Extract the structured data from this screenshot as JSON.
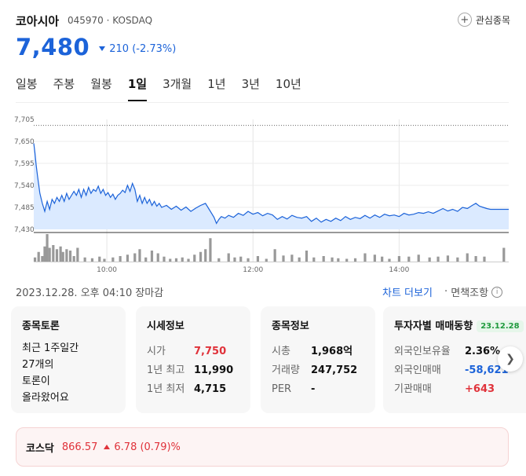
{
  "header": {
    "name": "코아시아",
    "code": "045970",
    "market": "KOSDAQ",
    "watch_label": "관심종목"
  },
  "quote": {
    "price": "7,480",
    "change": "210",
    "change_pct": "(-2.73%)",
    "direction": "down",
    "color": "#1c63d9"
  },
  "tabs": [
    "일봉",
    "주봉",
    "월봉",
    "1일",
    "3개월",
    "1년",
    "3년",
    "10년"
  ],
  "active_tab": "1일",
  "chart_data": {
    "type": "area",
    "y_ticks": [
      "7,705",
      "7,650",
      "7,595",
      "7,540",
      "7,485",
      "7,430"
    ],
    "ylim": [
      7430,
      7705
    ],
    "reference_line": 7690,
    "x_ticks": [
      "10:00",
      "12:00",
      "14:00"
    ],
    "x_range_minutes": [
      540,
      930
    ],
    "x_tick_minutes": [
      600,
      720,
      840
    ],
    "price_points": [
      [
        540,
        7645
      ],
      [
        541,
        7620
      ],
      [
        542,
        7590
      ],
      [
        543,
        7565
      ],
      [
        545,
        7520
      ],
      [
        547,
        7495
      ],
      [
        549,
        7475
      ],
      [
        551,
        7500
      ],
      [
        553,
        7480
      ],
      [
        555,
        7505
      ],
      [
        557,
        7495
      ],
      [
        559,
        7510
      ],
      [
        561,
        7500
      ],
      [
        563,
        7515
      ],
      [
        565,
        7500
      ],
      [
        567,
        7520
      ],
      [
        569,
        7505
      ],
      [
        571,
        7515
      ],
      [
        573,
        7525
      ],
      [
        575,
        7515
      ],
      [
        577,
        7530
      ],
      [
        579,
        7510
      ],
      [
        581,
        7530
      ],
      [
        583,
        7515
      ],
      [
        585,
        7535
      ],
      [
        587,
        7520
      ],
      [
        589,
        7530
      ],
      [
        591,
        7525
      ],
      [
        593,
        7538
      ],
      [
        595,
        7520
      ],
      [
        597,
        7530
      ],
      [
        599,
        7515
      ],
      [
        601,
        7522
      ],
      [
        603,
        7510
      ],
      [
        605,
        7518
      ],
      [
        607,
        7505
      ],
      [
        609,
        7515
      ],
      [
        611,
        7520
      ],
      [
        613,
        7528
      ],
      [
        615,
        7522
      ],
      [
        617,
        7540
      ],
      [
        619,
        7525
      ],
      [
        621,
        7545
      ],
      [
        623,
        7530
      ],
      [
        625,
        7500
      ],
      [
        627,
        7515
      ],
      [
        629,
        7495
      ],
      [
        631,
        7510
      ],
      [
        633,
        7495
      ],
      [
        635,
        7505
      ],
      [
        637,
        7490
      ],
      [
        639,
        7500
      ],
      [
        641,
        7488
      ],
      [
        643,
        7495
      ],
      [
        645,
        7485
      ],
      [
        649,
        7490
      ],
      [
        653,
        7480
      ],
      [
        657,
        7488
      ],
      [
        661,
        7478
      ],
      [
        665,
        7486
      ],
      [
        669,
        7475
      ],
      [
        673,
        7483
      ],
      [
        677,
        7490
      ],
      [
        681,
        7495
      ],
      [
        684,
        7480
      ],
      [
        686,
        7470
      ],
      [
        688,
        7460
      ],
      [
        690,
        7445
      ],
      [
        692,
        7455
      ],
      [
        694,
        7462
      ],
      [
        697,
        7458
      ],
      [
        700,
        7465
      ],
      [
        704,
        7460
      ],
      [
        708,
        7470
      ],
      [
        712,
        7465
      ],
      [
        716,
        7475
      ],
      [
        720,
        7468
      ],
      [
        724,
        7472
      ],
      [
        728,
        7464
      ],
      [
        732,
        7470
      ],
      [
        736,
        7466
      ],
      [
        740,
        7455
      ],
      [
        744,
        7462
      ],
      [
        748,
        7456
      ],
      [
        752,
        7465
      ],
      [
        756,
        7460
      ],
      [
        760,
        7458
      ],
      [
        764,
        7462
      ],
      [
        768,
        7450
      ],
      [
        772,
        7458
      ],
      [
        776,
        7448
      ],
      [
        780,
        7455
      ],
      [
        784,
        7450
      ],
      [
        788,
        7458
      ],
      [
        792,
        7452
      ],
      [
        796,
        7462
      ],
      [
        800,
        7455
      ],
      [
        804,
        7460
      ],
      [
        808,
        7457
      ],
      [
        812,
        7465
      ],
      [
        816,
        7458
      ],
      [
        820,
        7466
      ],
      [
        824,
        7460
      ],
      [
        828,
        7468
      ],
      [
        832,
        7464
      ],
      [
        836,
        7466
      ],
      [
        840,
        7462
      ],
      [
        844,
        7470
      ],
      [
        848,
        7466
      ],
      [
        852,
        7468
      ],
      [
        856,
        7472
      ],
      [
        860,
        7470
      ],
      [
        864,
        7474
      ],
      [
        868,
        7470
      ],
      [
        872,
        7476
      ],
      [
        876,
        7482
      ],
      [
        880,
        7476
      ],
      [
        884,
        7480
      ],
      [
        888,
        7475
      ],
      [
        892,
        7485
      ],
      [
        896,
        7482
      ],
      [
        900,
        7490
      ],
      [
        903,
        7495
      ],
      [
        906,
        7488
      ],
      [
        909,
        7485
      ],
      [
        912,
        7482
      ],
      [
        915,
        7480
      ],
      [
        930,
        7480
      ]
    ],
    "volume_points": [
      [
        541,
        0.15
      ],
      [
        544,
        0.35
      ],
      [
        547,
        0.2
      ],
      [
        549,
        0.55
      ],
      [
        551,
        1.0
      ],
      [
        553,
        0.5
      ],
      [
        556,
        0.6
      ],
      [
        559,
        0.45
      ],
      [
        562,
        0.55
      ],
      [
        564,
        0.35
      ],
      [
        567,
        0.45
      ],
      [
        570,
        0.4
      ],
      [
        573,
        0.2
      ],
      [
        576,
        0.5
      ],
      [
        582,
        0.15
      ],
      [
        588,
        0.12
      ],
      [
        594,
        0.18
      ],
      [
        598,
        0.1
      ],
      [
        605,
        0.15
      ],
      [
        611,
        0.2
      ],
      [
        617,
        0.25
      ],
      [
        623,
        0.3
      ],
      [
        627,
        0.45
      ],
      [
        632,
        0.15
      ],
      [
        637,
        0.4
      ],
      [
        642,
        0.3
      ],
      [
        647,
        0.18
      ],
      [
        652,
        0.1
      ],
      [
        657,
        0.12
      ],
      [
        662,
        0.15
      ],
      [
        667,
        0.1
      ],
      [
        672,
        0.25
      ],
      [
        677,
        0.35
      ],
      [
        681,
        0.45
      ],
      [
        685,
        0.85
      ],
      [
        692,
        0.12
      ],
      [
        700,
        0.3
      ],
      [
        705,
        0.15
      ],
      [
        710,
        0.18
      ],
      [
        716,
        0.12
      ],
      [
        724,
        0.2
      ],
      [
        731,
        0.1
      ],
      [
        738,
        0.45
      ],
      [
        745,
        0.22
      ],
      [
        752,
        0.25
      ],
      [
        758,
        0.15
      ],
      [
        764,
        0.4
      ],
      [
        770,
        0.15
      ],
      [
        778,
        0.2
      ],
      [
        785,
        0.15
      ],
      [
        790,
        0.12
      ],
      [
        797,
        0.1
      ],
      [
        804,
        0.12
      ],
      [
        812,
        0.3
      ],
      [
        820,
        0.25
      ],
      [
        826,
        0.18
      ],
      [
        832,
        0.1
      ],
      [
        840,
        0.2
      ],
      [
        848,
        0.18
      ],
      [
        856,
        0.25
      ],
      [
        865,
        0.15
      ],
      [
        872,
        0.18
      ],
      [
        880,
        0.22
      ],
      [
        888,
        0.15
      ],
      [
        896,
        0.3
      ],
      [
        903,
        0.2
      ],
      [
        910,
        0.18
      ],
      [
        926,
        0.5
      ]
    ],
    "line_color": "#1c63d9",
    "fill_color": "#dbeaff"
  },
  "status": {
    "timestamp": "2023.12.28. 오후 04:10 장마감",
    "chart_more": "차트 더보기",
    "disclaimer": "면책조항"
  },
  "cards": {
    "forum": {
      "title": "종목토론",
      "line1": "최근 1주일간",
      "line2": "27개의",
      "line3": "토론이",
      "line4": "올라왔어요"
    },
    "market_info": {
      "title": "시세정보",
      "rows": [
        {
          "label": "시가",
          "value": "7,750"
        },
        {
          "label": "1년 최고",
          "value": "11,990"
        },
        {
          "label": "1년 최저",
          "value": "4,715"
        }
      ]
    },
    "stock_info": {
      "title": "종목정보",
      "rows": [
        {
          "label": "시총",
          "value": "1,968억"
        },
        {
          "label": "거래량",
          "value": "247,752"
        },
        {
          "label": "PER",
          "value": "-"
        }
      ]
    },
    "investor": {
      "title": "투자자별 매매동향",
      "date": "23.12.28",
      "rows": [
        {
          "label": "외국인보유율",
          "value": "2.36%"
        },
        {
          "label": "외국인매매",
          "value": "-58,621"
        },
        {
          "label": "기관매매",
          "value": "+643"
        }
      ]
    }
  },
  "index": {
    "label": "코스닥",
    "value": "866.57",
    "change": "6.78 (0.79)%"
  }
}
